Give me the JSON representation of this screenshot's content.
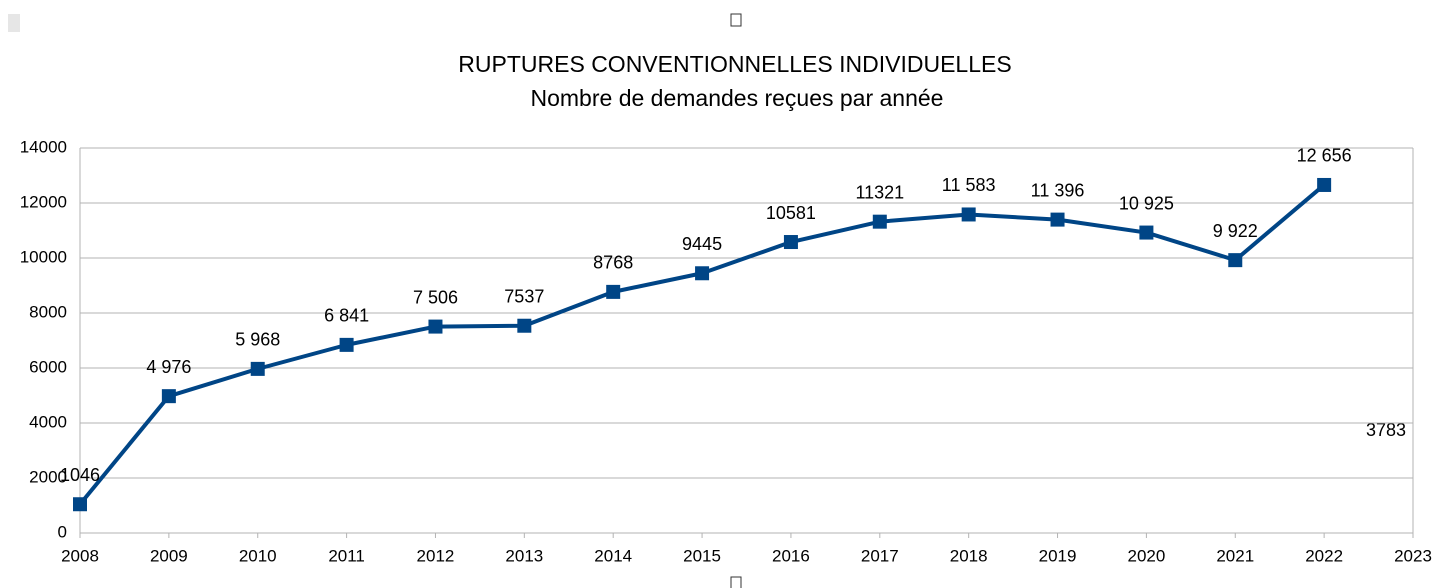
{
  "chart_data": {
    "type": "line",
    "title": "RUPTURES CONVENTIONNELLES INDIVIDUELLES",
    "subtitle": "Nombre de demandes reçues par année",
    "x": [
      2008,
      2009,
      2010,
      2011,
      2012,
      2013,
      2014,
      2015,
      2016,
      2017,
      2018,
      2019,
      2020,
      2021,
      2022
    ],
    "values": [
      1046,
      4976,
      5968,
      6841,
      7506,
      7537,
      8768,
      9445,
      10581,
      11321,
      11583,
      11396,
      10925,
      9922,
      12656
    ],
    "value_labels": [
      "1046",
      "4 976",
      "5 968",
      "6 841",
      "7 506",
      "7537",
      "8768",
      "9445",
      "10581",
      "11321",
      "11 583",
      "11 396",
      "10 925",
      "9 922",
      "12 656"
    ],
    "color": "#004586",
    "xlim": [
      2008,
      2023
    ],
    "xticks": [
      2008,
      2009,
      2010,
      2011,
      2012,
      2013,
      2014,
      2015,
      2016,
      2017,
      2018,
      2019,
      2020,
      2021,
      2022,
      2023
    ],
    "ylim": [
      0,
      14000
    ],
    "yticks": [
      0,
      2000,
      4000,
      6000,
      8000,
      10000,
      12000,
      14000
    ],
    "grid": true,
    "annotations": [
      "3783"
    ]
  }
}
